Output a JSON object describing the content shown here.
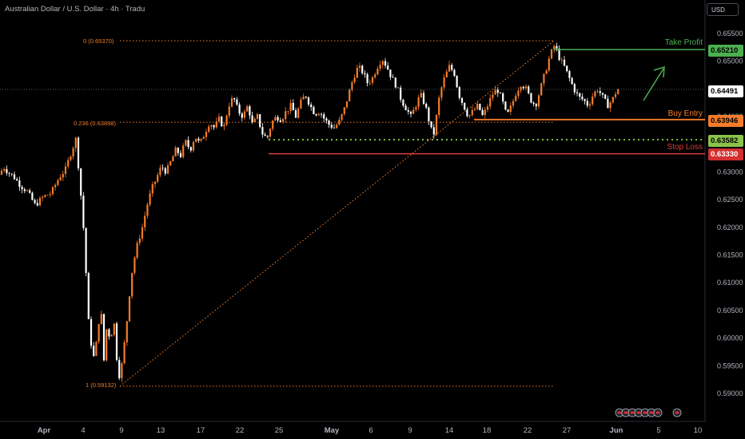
{
  "header": {
    "symbol_title": "Australian Dollar / U.S. Dollar · 4h · Tradu",
    "currency": "USD"
  },
  "annotations": {
    "fib_0": "0 (0.65370)",
    "fib_0236": "0.236 (0.63898)",
    "fib_1": "1 (0.59132)",
    "take_profit": "Take Profit",
    "buy_entry": "Buy Entry",
    "stop_loss": "Stop Loss"
  },
  "badges": {
    "take_profit": "0.65210",
    "current": "0.64491",
    "buy_entry": "0.63946",
    "support": "0.63582",
    "stop_loss": "0.63330"
  },
  "colors": {
    "background": "#000000",
    "take_profit": "#4caf50",
    "buy_entry": "#f57c2a",
    "stop_loss": "#e03a3a",
    "support_dotted": "#8bc34a",
    "fib": "#f57c2a",
    "candle_up": "#f57c2a",
    "candle_down": "#ffffff",
    "arrow": "#4caf50"
  },
  "chart_data": {
    "type": "candlestick",
    "title": "Australian Dollar / U.S. Dollar · 4h · Tradu",
    "ylim": [
      0.5885,
      0.6555
    ],
    "y_ticks": [
      "0.65500",
      "0.65000",
      "0.64500",
      "0.64000",
      "0.63500",
      "0.63000",
      "0.62500",
      "0.62000",
      "0.61500",
      "0.61000",
      "0.60500",
      "0.60000",
      "0.59500",
      "0.59000"
    ],
    "x_ticks": [
      "Apr",
      "4",
      "9",
      "13",
      "17",
      "22",
      "25",
      "May",
      "6",
      "9",
      "14",
      "18",
      "22",
      "27",
      "Jun",
      "5",
      "10"
    ],
    "x_tick_bold": [
      "Apr",
      "May",
      "Jun"
    ],
    "levels": {
      "take_profit": 0.6521,
      "buy_entry": 0.63946,
      "support": 0.63582,
      "stop_loss": 0.6333,
      "current": 0.64491,
      "fib_0": 0.6537,
      "fib_0236": 0.63898,
      "fib_1": 0.59132
    },
    "price_path": [
      [
        0,
        0.6295
      ],
      [
        4,
        0.631
      ],
      [
        10,
        0.63
      ],
      [
        18,
        0.629
      ],
      [
        26,
        0.6275
      ],
      [
        34,
        0.6265
      ],
      [
        44,
        0.624
      ],
      [
        54,
        0.6255
      ],
      [
        64,
        0.6262
      ],
      [
        74,
        0.629
      ],
      [
        82,
        0.6305
      ],
      [
        90,
        0.634
      ],
      [
        95,
        0.636
      ],
      [
        100,
        0.628
      ],
      [
        106,
        0.617
      ],
      [
        110,
        0.604
      ],
      [
        114,
        0.599
      ],
      [
        118,
        0.596
      ],
      [
        122,
        0.601
      ],
      [
        126,
        0.606
      ],
      [
        130,
        0.596
      ],
      [
        134,
        0.603
      ],
      [
        138,
        0.599
      ],
      [
        142,
        0.604
      ],
      [
        146,
        0.5965
      ],
      [
        150,
        0.5925
      ],
      [
        154,
        0.597
      ],
      [
        158,
        0.602
      ],
      [
        162,
        0.608
      ],
      [
        166,
        0.613
      ],
      [
        172,
        0.617
      ],
      [
        178,
        0.62
      ],
      [
        184,
        0.624
      ],
      [
        190,
        0.627
      ],
      [
        196,
        0.629
      ],
      [
        202,
        0.631
      ],
      [
        208,
        0.63
      ],
      [
        214,
        0.632
      ],
      [
        220,
        0.634
      ],
      [
        226,
        0.633
      ],
      [
        232,
        0.6355
      ],
      [
        238,
        0.634
      ],
      [
        244,
        0.6365
      ],
      [
        250,
        0.635
      ],
      [
        256,
        0.637
      ],
      [
        262,
        0.639
      ],
      [
        268,
        0.638
      ],
      [
        274,
        0.6395
      ],
      [
        280,
        0.638
      ],
      [
        286,
        0.642
      ],
      [
        292,
        0.6435
      ],
      [
        298,
        0.641
      ],
      [
        304,
        0.64
      ],
      [
        310,
        0.642
      ],
      [
        316,
        0.6385
      ],
      [
        322,
        0.64
      ],
      [
        328,
        0.637
      ],
      [
        334,
        0.636
      ],
      [
        340,
        0.639
      ],
      [
        346,
        0.64
      ],
      [
        352,
        0.6395
      ],
      [
        358,
        0.641
      ],
      [
        364,
        0.642
      ],
      [
        370,
        0.64
      ],
      [
        376,
        0.6425
      ],
      [
        382,
        0.644
      ],
      [
        388,
        0.642
      ],
      [
        394,
        0.6405
      ],
      [
        400,
        0.641
      ],
      [
        406,
        0.6395
      ],
      [
        412,
        0.6385
      ],
      [
        418,
        0.638
      ],
      [
        424,
        0.639
      ],
      [
        430,
        0.641
      ],
      [
        436,
        0.644
      ],
      [
        442,
        0.647
      ],
      [
        448,
        0.649
      ],
      [
        454,
        0.648
      ],
      [
        460,
        0.646
      ],
      [
        466,
        0.647
      ],
      [
        472,
        0.649
      ],
      [
        478,
        0.6505
      ],
      [
        484,
        0.649
      ],
      [
        490,
        0.647
      ],
      [
        496,
        0.6455
      ],
      [
        502,
        0.643
      ],
      [
        508,
        0.6415
      ],
      [
        514,
        0.64
      ],
      [
        520,
        0.642
      ],
      [
        526,
        0.644
      ],
      [
        532,
        0.642
      ],
      [
        538,
        0.6385
      ],
      [
        542,
        0.6362
      ],
      [
        546,
        0.64
      ],
      [
        550,
        0.644
      ],
      [
        556,
        0.647
      ],
      [
        562,
        0.649
      ],
      [
        568,
        0.648
      ],
      [
        574,
        0.644
      ],
      [
        580,
        0.642
      ],
      [
        586,
        0.64
      ],
      [
        592,
        0.641
      ],
      [
        598,
        0.642
      ],
      [
        604,
        0.64
      ],
      [
        610,
        0.642
      ],
      [
        616,
        0.644
      ],
      [
        622,
        0.645
      ],
      [
        628,
        0.643
      ],
      [
        634,
        0.64
      ],
      [
        640,
        0.642
      ],
      [
        646,
        0.6445
      ],
      [
        652,
        0.646
      ],
      [
        658,
        0.645
      ],
      [
        664,
        0.643
      ],
      [
        670,
        0.642
      ],
      [
        676,
        0.645
      ],
      [
        682,
        0.648
      ],
      [
        688,
        0.651
      ],
      [
        694,
        0.653
      ],
      [
        700,
        0.6505
      ],
      [
        706,
        0.649
      ],
      [
        712,
        0.647
      ],
      [
        718,
        0.645
      ],
      [
        724,
        0.6435
      ],
      [
        730,
        0.643
      ],
      [
        736,
        0.642
      ],
      [
        742,
        0.644
      ],
      [
        748,
        0.645
      ],
      [
        754,
        0.6435
      ],
      [
        760,
        0.642
      ],
      [
        766,
        0.643
      ],
      [
        772,
        0.6449
      ]
    ]
  }
}
